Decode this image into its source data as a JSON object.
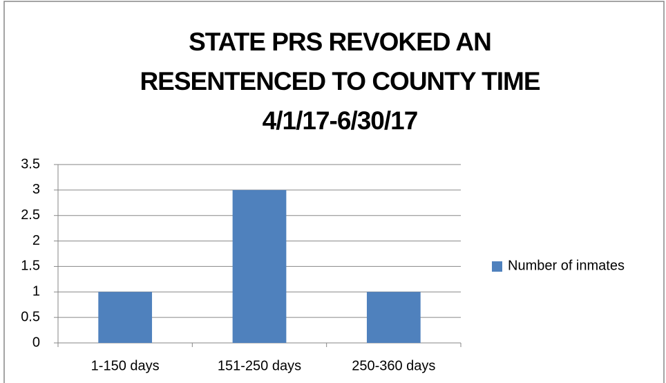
{
  "chart_data": {
    "type": "bar",
    "title": [
      "STATE PRS REVOKED AN",
      "RESENTENCED TO COUNTY TIME",
      "4/1/17-6/30/17"
    ],
    "categories": [
      "1-150 days",
      "151-250 days",
      "250-360 days"
    ],
    "series": [
      {
        "name": "Number of inmates",
        "color": "#4f81bd",
        "values": [
          1,
          3,
          1
        ]
      }
    ],
    "ylim": [
      0,
      3.5
    ],
    "yticks": [
      0,
      0.5,
      1,
      1.5,
      2,
      2.5,
      3,
      3.5
    ],
    "grid": true,
    "legend": "right"
  }
}
